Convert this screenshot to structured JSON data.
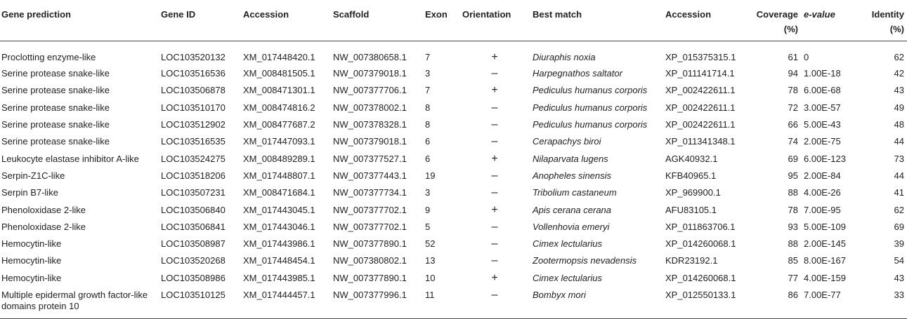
{
  "headers": {
    "gene_prediction": "Gene prediction",
    "gene_id": "Gene ID",
    "accession": "Accession",
    "scaffold": "Scaffold",
    "exon": "Exon",
    "orientation": "Orientation",
    "best_match": "Best match",
    "accession2": "Accession",
    "coverage_l1": "Coverage",
    "coverage_l2": "(%)",
    "evalue": "e-value",
    "identity_l1": "Identity",
    "identity_l2": "(%)"
  },
  "rows": [
    {
      "gene": "Proclotting enzyme-like",
      "id": "LOC103520132",
      "acc": "XM_017448420.1",
      "scaffold": "NW_007380658.1",
      "exon": "7",
      "orient": "+",
      "match": "Diuraphis noxia",
      "acc2": "XP_015375315.1",
      "coverage": "61",
      "evalue": "0",
      "identity": "62"
    },
    {
      "gene": "Serine protease snake-like",
      "id": "LOC103516536",
      "acc": "XM_008481505.1",
      "scaffold": "NW_007379018.1",
      "exon": "3",
      "orient": "–",
      "match": "Harpegnathos saltator",
      "acc2": "XP_011141714.1",
      "coverage": "94",
      "evalue": "1.00E-18",
      "identity": "42"
    },
    {
      "gene": "Serine protease snake-like",
      "id": "LOC103506878",
      "acc": "XM_008471301.1",
      "scaffold": "NW_007377706.1",
      "exon": "7",
      "orient": "+",
      "match": "Pediculus humanus corporis",
      "acc2": "XP_002422611.1",
      "coverage": "78",
      "evalue": "6.00E-68",
      "identity": "43"
    },
    {
      "gene": "Serine protease snake-like",
      "id": "LOC103510170",
      "acc": "XM_008474816.2",
      "scaffold": "NW_007378002.1",
      "exon": "8",
      "orient": "–",
      "match": "Pediculus humanus corporis",
      "acc2": "XP_002422611.1",
      "coverage": "72",
      "evalue": "3.00E-57",
      "identity": "49"
    },
    {
      "gene": "Serine protease snake-like",
      "id": "LOC103512902",
      "acc": "XM_008477687.2",
      "scaffold": "NW_007378328.1",
      "exon": "8",
      "orient": "–",
      "match": "Pediculus humanus corporis",
      "acc2": "XP_002422611.1",
      "coverage": "66",
      "evalue": "5.00E-43",
      "identity": "48"
    },
    {
      "gene": "Serine protease snake-like",
      "id": "LOC103516535",
      "acc": "XM_017447093.1",
      "scaffold": "NW_007379018.1",
      "exon": "6",
      "orient": "–",
      "match": "Cerapachys biroi",
      "acc2": "XP_011341348.1",
      "coverage": "74",
      "evalue": "2.00E-75",
      "identity": "44"
    },
    {
      "gene": "Leukocyte elastase inhibitor A-like",
      "id": "LOC103524275",
      "acc": "XM_008489289.1",
      "scaffold": "NW_007377527.1",
      "exon": "6",
      "orient": "+",
      "match": "Nilaparvata lugens",
      "acc2": "AGK40932.1",
      "coverage": "69",
      "evalue": "6.00E-123",
      "identity": "73"
    },
    {
      "gene": "Serpin-Z1C-like",
      "id": "LOC103518206",
      "acc": "XM_017448807.1",
      "scaffold": "NW_007377443.1",
      "exon": "19",
      "orient": "–",
      "match": "Anopheles sinensis",
      "acc2": "KFB40965.1",
      "coverage": "95",
      "evalue": "2.00E-84",
      "identity": "44"
    },
    {
      "gene": "Serpin B7-like",
      "id": "LOC103507231",
      "acc": "XM_008471684.1",
      "scaffold": "NW_007377734.1",
      "exon": "3",
      "orient": "–",
      "match": "Tribolium castaneum",
      "acc2": "XP_969900.1",
      "coverage": "88",
      "evalue": "4.00E-26",
      "identity": "41"
    },
    {
      "gene": "Phenoloxidase 2-like",
      "id": "LOC103506840",
      "acc": "XM_017443045.1",
      "scaffold": "NW_007377702.1",
      "exon": "9",
      "orient": "+",
      "match": "Apis cerana cerana",
      "acc2": "AFU83105.1",
      "coverage": "78",
      "evalue": "7.00E-95",
      "identity": "62"
    },
    {
      "gene": "Phenoloxidase 2-like",
      "id": "LOC103506841",
      "acc": "XM_017443046.1",
      "scaffold": "NW_007377702.1",
      "exon": "5",
      "orient": "–",
      "match": "Vollenhovia emeryi",
      "acc2": "XP_011863706.1",
      "coverage": "93",
      "evalue": "5.00E-109",
      "identity": "69"
    },
    {
      "gene": "Hemocytin-like",
      "id": "LOC103508987",
      "acc": "XM_017443986.1",
      "scaffold": "NW_007377890.1",
      "exon": "52",
      "orient": "–",
      "match": "Cimex lectularius",
      "acc2": "XP_014260068.1",
      "coverage": "88",
      "evalue": "2.00E-145",
      "identity": "39"
    },
    {
      "gene": "Hemocytin-like",
      "id": "LOC103520268",
      "acc": "XM_017448454.1",
      "scaffold": "NW_007380802.1",
      "exon": "13",
      "orient": "–",
      "match": "Zootermopsis nevadensis",
      "acc2": "KDR23192.1",
      "coverage": "85",
      "evalue": "8.00E-167",
      "identity": "54"
    },
    {
      "gene": "Hemocytin-like",
      "id": "LOC103508986",
      "acc": "XM_017443985.1",
      "scaffold": "NW_007377890.1",
      "exon": "10",
      "orient": "+",
      "match": "Cimex lectularius",
      "acc2": "XP_014260068.1",
      "coverage": "77",
      "evalue": "4.00E-159",
      "identity": "43"
    },
    {
      "gene": "Multiple epidermal growth factor-like domains protein 10",
      "id": "LOC103510125",
      "acc": "XM_017444457.1",
      "scaffold": "NW_007377996.1",
      "exon": "11",
      "orient": "–",
      "match": "Bombyx mori",
      "acc2": "XP_012550133.1",
      "coverage": "86",
      "evalue": "7.00E-77",
      "identity": "33"
    }
  ]
}
